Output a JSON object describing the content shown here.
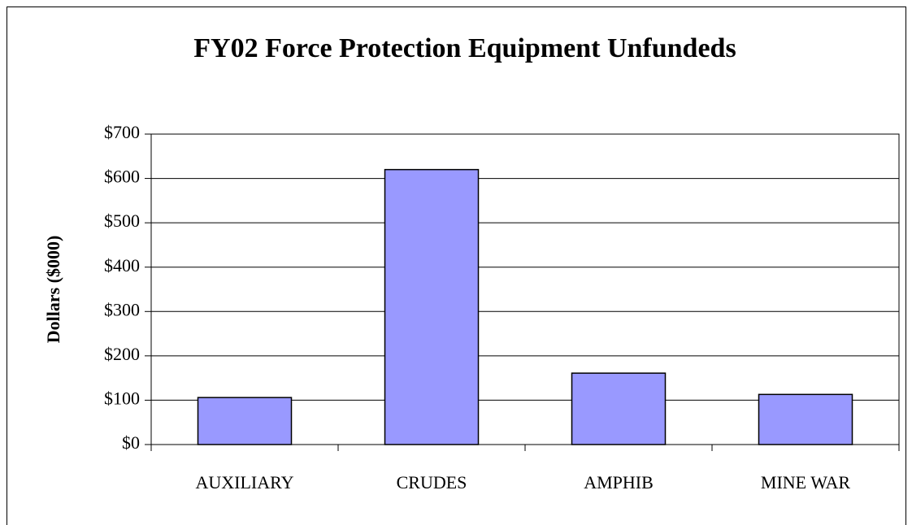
{
  "chart_data": {
    "type": "bar",
    "title": "FY02 Force Protection Equipment Unfundeds",
    "y_label": "Dollars ($000)",
    "categories": [
      "AUXILIARY",
      "CRUDES",
      "AMPHIB",
      "MINE WAR"
    ],
    "values": [
      106,
      620,
      161,
      113
    ],
    "color": "#9999ff",
    "ylim": [
      0,
      700
    ],
    "yticks": [
      {
        "value": 0,
        "label": "$0"
      },
      {
        "value": 100,
        "label": "$100"
      },
      {
        "value": 200,
        "label": "$200"
      },
      {
        "value": 300,
        "label": "$300"
      },
      {
        "value": 400,
        "label": "$400"
      },
      {
        "value": 500,
        "label": "$500"
      },
      {
        "value": 600,
        "label": "$600"
      },
      {
        "value": 700,
        "label": "$700"
      }
    ],
    "grid": true
  }
}
